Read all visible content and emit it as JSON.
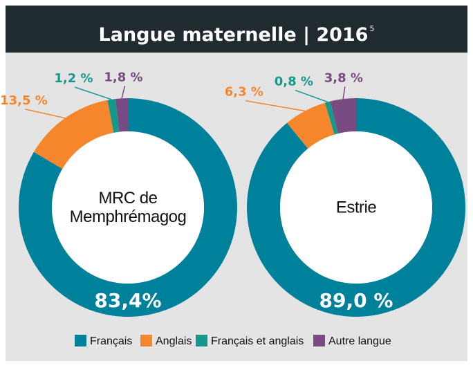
{
  "title": "Langue maternelle | 2016",
  "title_note": "5",
  "chart_data": [
    {
      "type": "pie",
      "title": "MRC de Memphrémagog",
      "categories": [
        "Français",
        "Anglais",
        "Français et anglais",
        "Autre langue"
      ],
      "values": [
        83.4,
        13.5,
        1.2,
        1.8
      ],
      "value_labels": [
        "83,4%",
        "13,5 %",
        "1,2 %",
        "1,8 %"
      ],
      "colors": [
        "#00819b",
        "#f5862b",
        "#14998b",
        "#7a4a83"
      ]
    },
    {
      "type": "pie",
      "title": "Estrie",
      "categories": [
        "Français",
        "Anglais",
        "Français et anglais",
        "Autre langue"
      ],
      "values": [
        89.0,
        6.3,
        0.8,
        3.8
      ],
      "value_labels": [
        "89,0 %",
        "6,3 %",
        "0,8 %",
        "3,8 %"
      ],
      "colors": [
        "#00819b",
        "#f5862b",
        "#14998b",
        "#7a4a83"
      ]
    }
  ]
}
